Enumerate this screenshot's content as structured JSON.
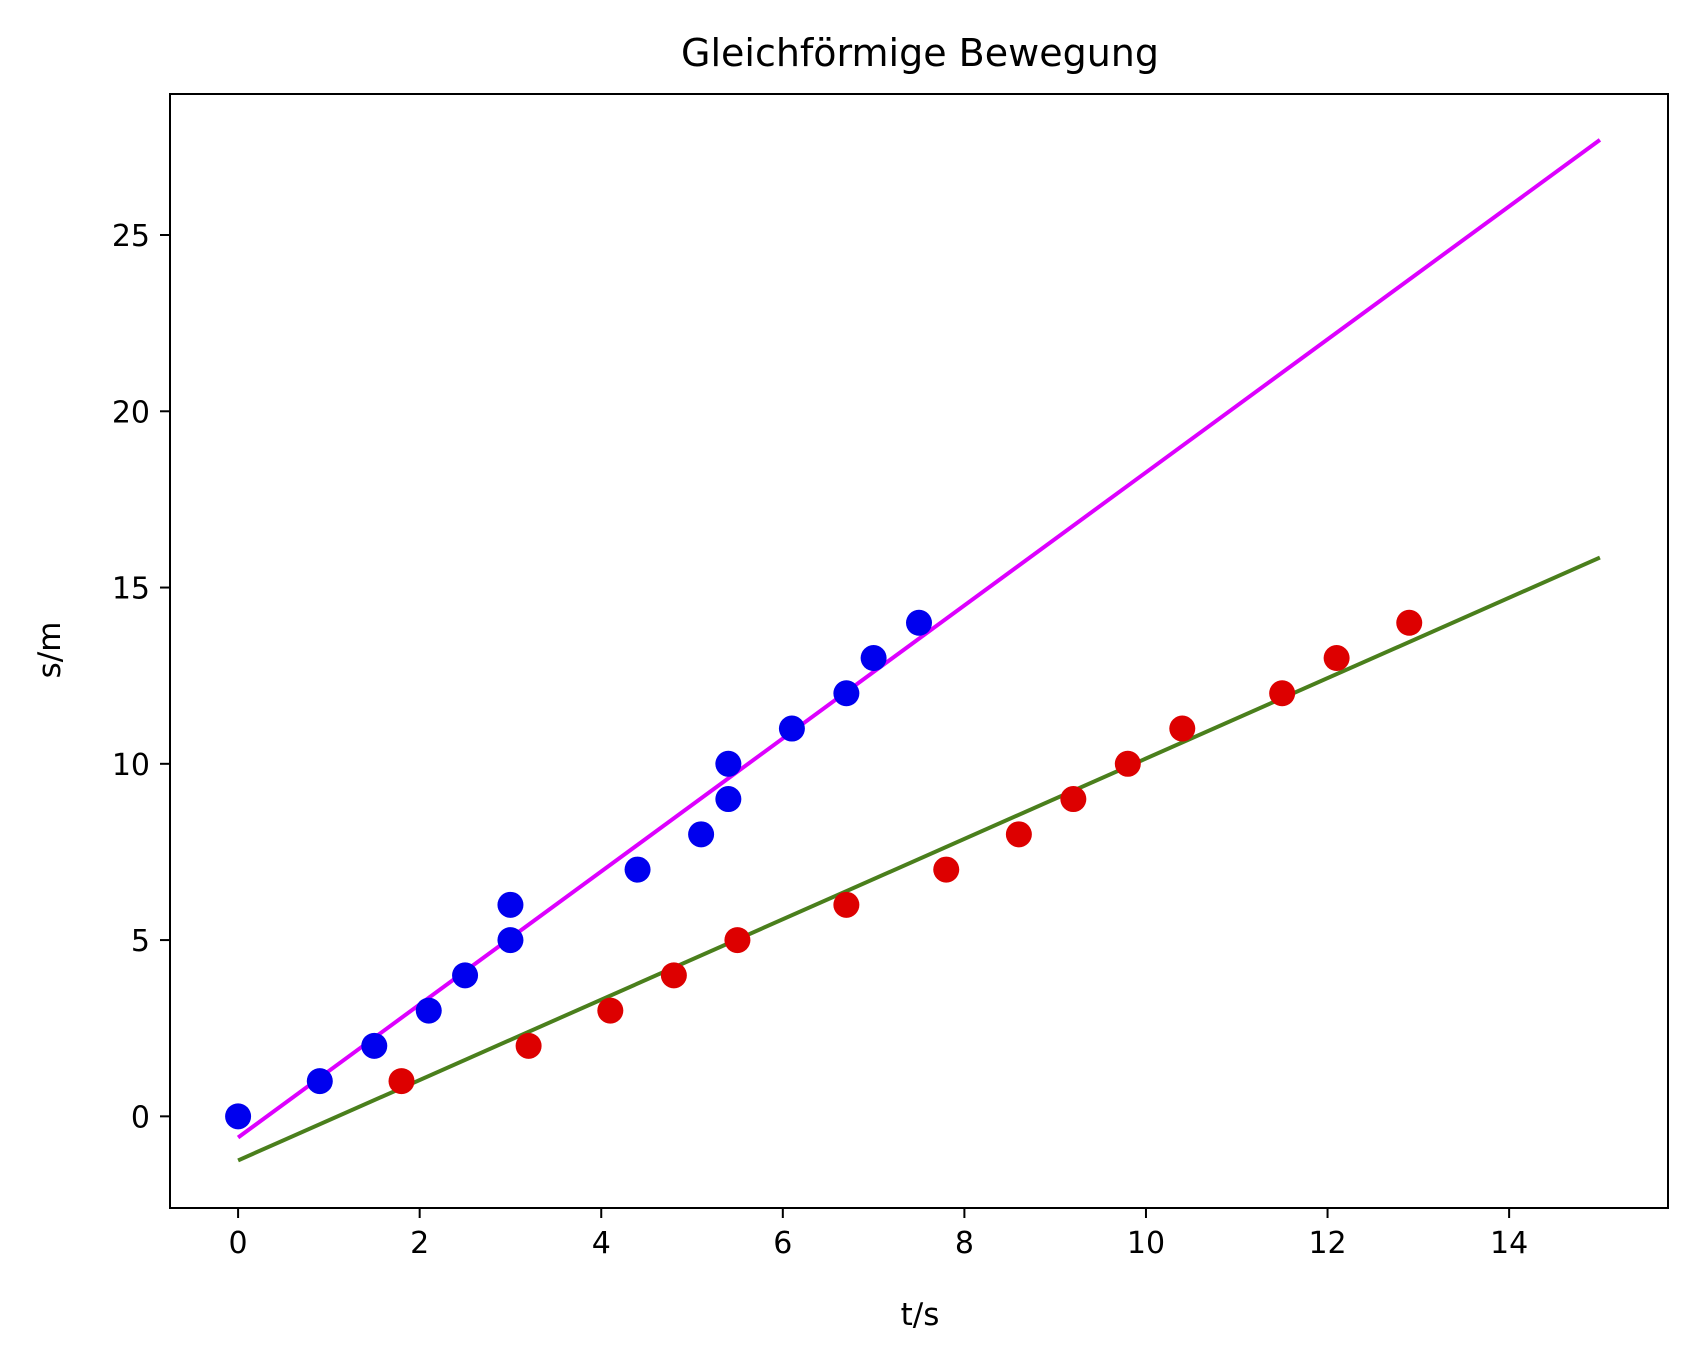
{
  "chart_data": {
    "type": "scatter",
    "title": "Gleichförmige Bewegung",
    "xlabel": "t/s",
    "ylabel": "s/m",
    "xlim": [
      -0.75,
      15.75
    ],
    "ylim": [
      -2.6,
      29.0
    ],
    "xticks": [
      0,
      2,
      4,
      6,
      8,
      10,
      12,
      14
    ],
    "yticks": [
      0,
      5,
      10,
      15,
      20,
      25
    ],
    "grid": false,
    "legend": "none",
    "series": [
      {
        "kind": "points",
        "color": "#0000ee",
        "x": [
          0,
          0.9,
          1.5,
          2.1,
          2.5,
          3.0,
          3.0,
          4.4,
          5.1,
          5.4,
          5.4,
          6.1,
          6.7,
          7.0,
          7.5
        ],
        "y": [
          0,
          1,
          2,
          3,
          4,
          5,
          6,
          7,
          8,
          9,
          10,
          11,
          12,
          13,
          14
        ]
      },
      {
        "kind": "points",
        "color": "#dd0000",
        "x": [
          1.8,
          3.2,
          4.1,
          4.8,
          5.5,
          6.7,
          7.8,
          8.6,
          9.2,
          9.8,
          10.4,
          11.5,
          12.1,
          12.9
        ],
        "y": [
          1,
          2,
          3,
          4,
          5,
          6,
          7,
          8,
          9,
          10,
          11,
          12,
          13,
          14
        ]
      },
      {
        "kind": "line",
        "color": "#dd00ff",
        "x": [
          0,
          15
        ],
        "y": [
          -0.6,
          27.7
        ]
      },
      {
        "kind": "line",
        "color": "#4a7f1c",
        "x": [
          0,
          15
        ],
        "y": [
          -1.25,
          15.85
        ]
      }
    ]
  }
}
